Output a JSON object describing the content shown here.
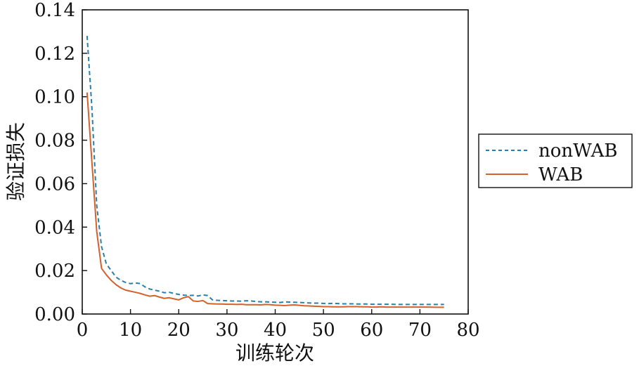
{
  "chart_data": {
    "type": "line",
    "xlabel": "训练轮次",
    "ylabel": "验证损失",
    "xlim": [
      0,
      80
    ],
    "ylim": [
      0,
      0.14
    ],
    "xticks": [
      0,
      10,
      20,
      30,
      40,
      50,
      60,
      70,
      80
    ],
    "yticks": [
      0,
      0.02,
      0.04,
      0.06,
      0.08,
      0.1,
      0.12,
      0.14
    ],
    "xtick_labels": [
      "0",
      "10",
      "20",
      "30",
      "40",
      "50",
      "60",
      "70",
      "80"
    ],
    "ytick_labels": [
      "0.00",
      "0.02",
      "0.04",
      "0.06",
      "0.08",
      "0.10",
      "0.12",
      "0.14"
    ],
    "legend_position": "outside-right",
    "grid": false,
    "series": [
      {
        "name": "nonWAB",
        "color": "#2a7fa8",
        "style": "dashed",
        "x": [
          1,
          2,
          3,
          4,
          5,
          6,
          7,
          8,
          9,
          10,
          11,
          12,
          13,
          14,
          15,
          16,
          17,
          18,
          19,
          20,
          21,
          22,
          23,
          24,
          25,
          26,
          27,
          28,
          29,
          30,
          31,
          32,
          33,
          34,
          35,
          36,
          37,
          38,
          39,
          40,
          41,
          42,
          43,
          44,
          45,
          46,
          47,
          48,
          49,
          50,
          51,
          52,
          53,
          54,
          55,
          56,
          57,
          58,
          59,
          60,
          61,
          62,
          63,
          64,
          65,
          66,
          67,
          68,
          69,
          70,
          71,
          72,
          73,
          74,
          75
        ],
        "y": [
          0.128,
          0.095,
          0.05,
          0.031,
          0.023,
          0.02,
          0.017,
          0.0155,
          0.0145,
          0.014,
          0.0143,
          0.014,
          0.0125,
          0.0115,
          0.011,
          0.0105,
          0.0098,
          0.01,
          0.0095,
          0.009,
          0.0087,
          0.0085,
          0.0086,
          0.0083,
          0.0088,
          0.0085,
          0.0065,
          0.0063,
          0.0062,
          0.0061,
          0.006,
          0.006,
          0.0059,
          0.0061,
          0.006,
          0.0058,
          0.0056,
          0.0056,
          0.0055,
          0.0054,
          0.0053,
          0.0056,
          0.0055,
          0.0054,
          0.0053,
          0.0052,
          0.0051,
          0.005,
          0.005,
          0.0049,
          0.0048,
          0.0049,
          0.0048,
          0.0047,
          0.0047,
          0.0047,
          0.0046,
          0.0046,
          0.0046,
          0.0045,
          0.0045,
          0.0045,
          0.0045,
          0.0045,
          0.0044,
          0.0044,
          0.0044,
          0.0044,
          0.0044,
          0.0044,
          0.0044,
          0.0044,
          0.0044,
          0.0044,
          0.0044
        ]
      },
      {
        "name": "WAB",
        "color": "#d4612a",
        "style": "solid",
        "x": [
          1,
          2,
          3,
          4,
          5,
          6,
          7,
          8,
          9,
          10,
          11,
          12,
          13,
          14,
          15,
          16,
          17,
          18,
          19,
          20,
          21,
          22,
          23,
          24,
          25,
          26,
          27,
          28,
          29,
          30,
          31,
          32,
          33,
          34,
          35,
          36,
          37,
          38,
          39,
          40,
          41,
          42,
          43,
          44,
          45,
          46,
          47,
          48,
          49,
          50,
          51,
          52,
          53,
          54,
          55,
          56,
          57,
          58,
          59,
          60,
          61,
          62,
          63,
          64,
          65,
          66,
          67,
          68,
          69,
          70,
          71,
          72,
          73,
          74,
          75
        ],
        "y": [
          0.102,
          0.07,
          0.038,
          0.021,
          0.018,
          0.0155,
          0.0135,
          0.012,
          0.011,
          0.0105,
          0.01,
          0.0095,
          0.0088,
          0.0082,
          0.0085,
          0.0078,
          0.0072,
          0.0075,
          0.007,
          0.0065,
          0.0075,
          0.008,
          0.006,
          0.0058,
          0.0062,
          0.0048,
          0.0047,
          0.0046,
          0.0046,
          0.0045,
          0.0045,
          0.0044,
          0.0045,
          0.0043,
          0.0043,
          0.0043,
          0.0042,
          0.0044,
          0.0043,
          0.0041,
          0.004,
          0.0039,
          0.0041,
          0.0042,
          0.004,
          0.0038,
          0.0037,
          0.0036,
          0.0035,
          0.0034,
          0.0034,
          0.0033,
          0.0033,
          0.0033,
          0.0034,
          0.0034,
          0.0034,
          0.0033,
          0.0033,
          0.0032,
          0.0032,
          0.0033,
          0.0032,
          0.0032,
          0.0032,
          0.0032,
          0.0032,
          0.0032,
          0.0032,
          0.0032,
          0.0032,
          0.0032,
          0.0031,
          0.0031,
          0.0031
        ]
      }
    ]
  }
}
